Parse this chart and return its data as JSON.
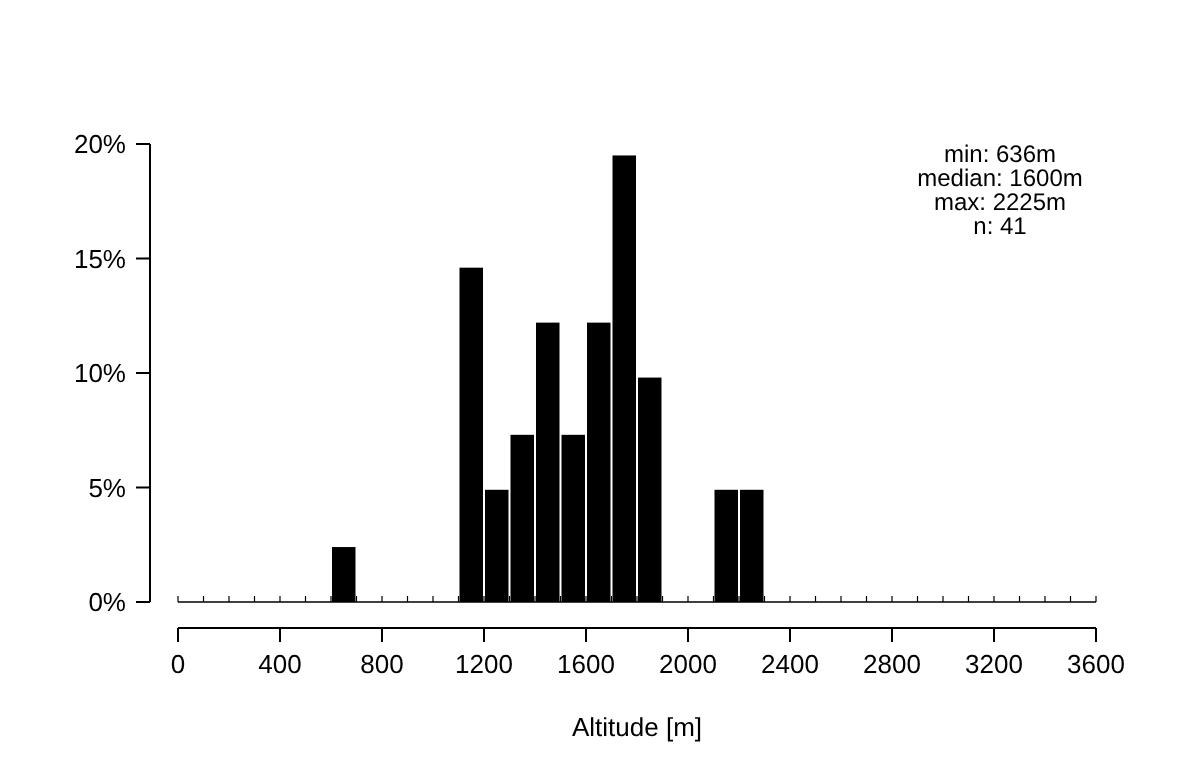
{
  "chart_data": {
    "type": "histogram",
    "xlabel": "Altitude [m]",
    "bins": [
      0,
      100,
      200,
      300,
      400,
      500,
      600,
      700,
      800,
      900,
      1000,
      1100,
      1200,
      1300,
      1400,
      1500,
      1600,
      1700,
      1800,
      1900,
      2000,
      2100,
      2200,
      2300,
      2400,
      2500,
      2600,
      2700,
      2800,
      2900,
      3000,
      3100,
      3200,
      3300,
      3400,
      3500,
      3600
    ],
    "values": [
      0,
      0,
      0,
      0,
      0,
      0,
      2.4,
      0,
      0,
      0,
      0,
      14.6,
      4.9,
      7.3,
      12.2,
      7.3,
      12.2,
      19.5,
      9.8,
      0,
      0,
      4.9,
      4.9,
      0,
      0,
      0,
      0,
      0,
      0,
      0,
      0,
      0,
      0,
      0,
      0,
      0
    ],
    "color": "#000000",
    "xlim": [
      0,
      3600
    ],
    "xticks": [
      0,
      400,
      800,
      1200,
      1600,
      2000,
      2400,
      2800,
      3200,
      3600
    ],
    "ylim": [
      0,
      20
    ],
    "yticks": [
      {
        "value": 0,
        "label": "0%"
      },
      {
        "value": 5,
        "label": "5%"
      },
      {
        "value": 10,
        "label": "10%"
      },
      {
        "value": 15,
        "label": "15%"
      },
      {
        "value": 20,
        "label": "20%"
      }
    ],
    "annotations": [
      "min: 636m",
      "median: 1600m",
      "max: 2225m",
      "n: 41"
    ],
    "grid": false
  }
}
